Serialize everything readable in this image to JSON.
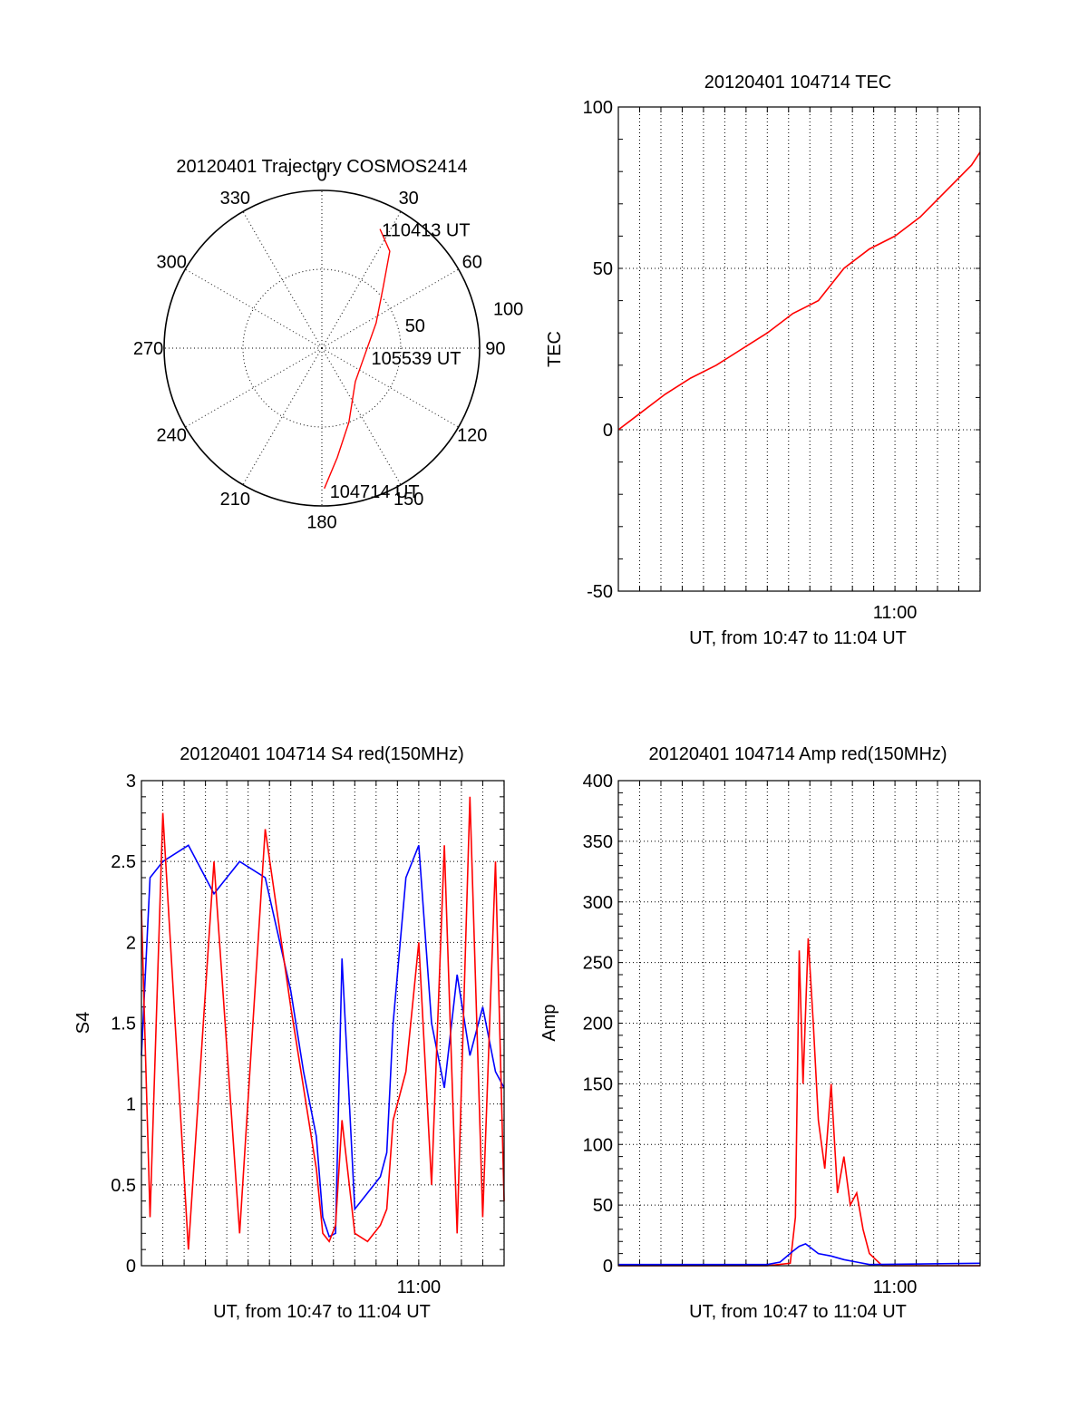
{
  "colors": {
    "red": "#ff0000",
    "blue": "#0000ff",
    "grid": "#000000",
    "axis": "#000000"
  },
  "chart_data": [
    {
      "id": "trajectory",
      "type": "polar",
      "title": "20120401 Trajectory COSMOS2414",
      "angle_labels": [
        "0",
        "30",
        "60",
        "90",
        "120",
        "150",
        "180",
        "210",
        "240",
        "270",
        "300",
        "330"
      ],
      "radial_labels": [
        "50",
        "100"
      ],
      "radial_max": 100,
      "radial_rings": [
        50,
        100
      ],
      "zenith_convention": "r = 90 - elevation scaled to 100",
      "track_points": [
        {
          "az": 179,
          "r": 89
        },
        {
          "az": 172,
          "r": 70
        },
        {
          "az": 160,
          "r": 50
        },
        {
          "az": 135,
          "r": 30
        },
        {
          "az": 95,
          "r": 28
        },
        {
          "az": 65,
          "r": 38
        },
        {
          "az": 45,
          "r": 55
        },
        {
          "az": 35,
          "r": 75
        },
        {
          "az": 26,
          "r": 84
        }
      ],
      "time_labels": [
        "104714 UT",
        "105539 UT",
        "110413 UT"
      ]
    },
    {
      "id": "tec",
      "type": "line",
      "title": "20120401 104714 TEC",
      "xlabel": "UT, from 10:47 to 11:04 UT",
      "ylabel": "TEC",
      "xlim": [
        10.7833,
        11.0667
      ],
      "ylim": [
        -50,
        100
      ],
      "yticks": [
        "100",
        "50",
        "0",
        "-50"
      ],
      "ytick_values": [
        100,
        50,
        0,
        -50
      ],
      "xtick_labels": [
        "11:00"
      ],
      "xtick_values": [
        11.0
      ],
      "series": [
        {
          "color": "red",
          "x": [
            10.7833,
            10.8,
            10.82,
            10.84,
            10.86,
            10.88,
            10.9,
            10.92,
            10.94,
            10.96,
            10.98,
            11.0,
            11.02,
            11.04,
            11.06,
            11.0667
          ],
          "y": [
            0,
            5,
            11,
            16,
            20,
            25,
            30,
            36,
            40,
            50,
            56,
            60,
            66,
            74,
            82,
            86
          ]
        }
      ]
    },
    {
      "id": "s4",
      "type": "line",
      "title": "20120401 104714 S4 red(150MHz)",
      "xlabel": "UT, from 10:47 to 11:04 UT",
      "ylabel": "S4",
      "xlim": [
        10.7833,
        11.0667
      ],
      "ylim": [
        0,
        3
      ],
      "yticks": [
        "3",
        "2.5",
        "2",
        "1.5",
        "1",
        "0.5",
        "0"
      ],
      "ytick_values": [
        3,
        2.5,
        2,
        1.5,
        1,
        0.5,
        0
      ],
      "xtick_labels": [
        "11:00"
      ],
      "xtick_values": [
        11.0
      ],
      "series": [
        {
          "color": "blue",
          "x": [
            10.7833,
            10.79,
            10.8,
            10.82,
            10.84,
            10.86,
            10.88,
            10.9,
            10.91,
            10.92,
            10.925,
            10.93,
            10.935,
            10.94,
            10.95,
            10.96,
            10.97,
            10.975,
            10.98,
            10.99,
            11.0,
            11.01,
            11.02,
            11.03,
            11.04,
            11.05,
            11.06,
            11.0667
          ],
          "y": [
            1.3,
            2.4,
            2.5,
            2.6,
            2.3,
            2.5,
            2.4,
            1.7,
            1.2,
            0.8,
            0.3,
            0.18,
            0.2,
            1.9,
            0.35,
            0.45,
            0.55,
            0.7,
            1.5,
            2.4,
            2.6,
            1.5,
            1.1,
            1.8,
            1.3,
            1.6,
            1.2,
            1.1
          ]
        },
        {
          "color": "red",
          "x": [
            10.7833,
            10.79,
            10.8,
            10.82,
            10.84,
            10.86,
            10.88,
            10.9,
            10.91,
            10.92,
            10.925,
            10.93,
            10.935,
            10.94,
            10.95,
            10.96,
            10.97,
            10.975,
            10.98,
            10.99,
            11.0,
            11.01,
            11.02,
            11.03,
            11.04,
            11.05,
            11.06,
            11.0667
          ],
          "y": [
            2.2,
            0.3,
            2.8,
            0.1,
            2.5,
            0.2,
            2.7,
            1.6,
            1.1,
            0.6,
            0.2,
            0.15,
            0.25,
            0.9,
            0.2,
            0.15,
            0.25,
            0.35,
            0.9,
            1.2,
            2.0,
            0.5,
            2.6,
            0.2,
            2.9,
            0.3,
            2.5,
            0.4
          ]
        }
      ]
    },
    {
      "id": "amp",
      "type": "line",
      "title": "20120401 104714 Amp red(150MHz)",
      "xlabel": "UT, from 10:47 to 11:04 UT",
      "ylabel": "Amp",
      "xlim": [
        10.7833,
        11.0667
      ],
      "ylim": [
        0,
        400
      ],
      "yticks": [
        "400",
        "350",
        "300",
        "250",
        "200",
        "150",
        "100",
        "50",
        "0"
      ],
      "ytick_values": [
        400,
        350,
        300,
        250,
        200,
        150,
        100,
        50,
        0
      ],
      "xtick_labels": [
        "11:00"
      ],
      "xtick_values": [
        11.0
      ],
      "series": [
        {
          "color": "red",
          "x": [
            10.7833,
            10.9,
            10.918,
            10.922,
            10.925,
            10.928,
            10.932,
            10.936,
            10.94,
            10.945,
            10.95,
            10.955,
            10.96,
            10.965,
            10.97,
            10.975,
            10.98,
            10.99,
            11.0667
          ],
          "y": [
            0,
            0,
            2,
            40,
            260,
            150,
            270,
            200,
            120,
            80,
            150,
            60,
            90,
            50,
            60,
            30,
            10,
            0,
            0
          ]
        },
        {
          "color": "blue",
          "x": [
            10.7833,
            10.9,
            10.91,
            10.92,
            10.925,
            10.93,
            10.935,
            10.94,
            10.95,
            10.96,
            10.97,
            10.98,
            11.0667
          ],
          "y": [
            1,
            1,
            3,
            12,
            16,
            18,
            14,
            10,
            8,
            5,
            3,
            1,
            2
          ]
        }
      ]
    }
  ]
}
